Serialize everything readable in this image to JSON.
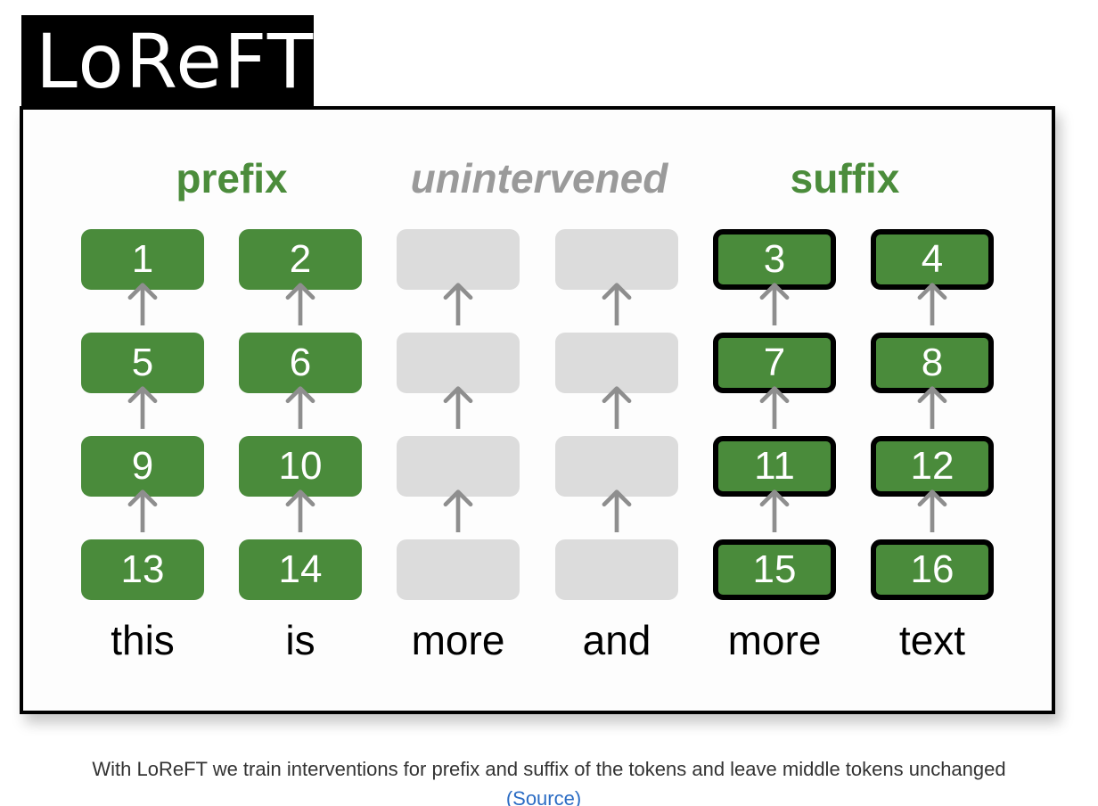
{
  "title": "LoReFT",
  "headers": {
    "prefix": "prefix",
    "unintervened": "unintervened",
    "suffix": "suffix"
  },
  "columns": [
    {
      "word": "this",
      "type": "prefix",
      "boxes": [
        "1",
        "5",
        "9",
        "13"
      ]
    },
    {
      "word": "is",
      "type": "prefix",
      "boxes": [
        "2",
        "6",
        "10",
        "14"
      ]
    },
    {
      "word": "more",
      "type": "unintervened",
      "boxes": [
        "",
        "",
        "",
        ""
      ]
    },
    {
      "word": "and",
      "type": "unintervened",
      "boxes": [
        "",
        "",
        "",
        ""
      ]
    },
    {
      "word": "more",
      "type": "suffix",
      "boxes": [
        "3",
        "7",
        "11",
        "15"
      ]
    },
    {
      "word": "text",
      "type": "suffix",
      "boxes": [
        "4",
        "8",
        "12",
        "16"
      ]
    }
  ],
  "caption": "With LoReFT we train interventions for prefix and suffix of the tokens and leave middle tokens unchanged",
  "source_link": "(Source)",
  "colors": {
    "green": "#4a8b3b",
    "header_green": "#4b8c3b",
    "grey_box": "#dcdcdc",
    "header_gray": "#9a9a9a",
    "arrow": "#8e8e8e",
    "link": "#2b6cc4"
  }
}
